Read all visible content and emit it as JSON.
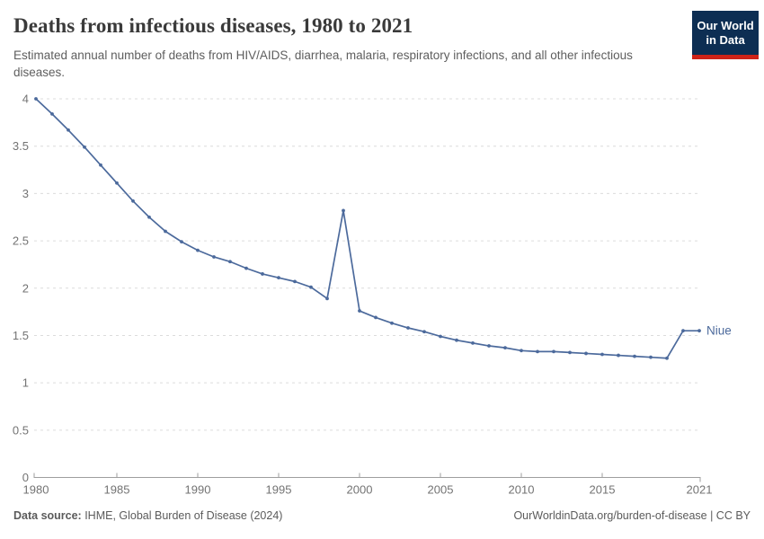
{
  "header": {
    "title": "Deaths from infectious diseases, 1980 to 2021",
    "subtitle": "Estimated annual number of deaths from HIV/AIDS, diarrhea, malaria, respiratory infections, and all other infectious diseases."
  },
  "logo": {
    "line1": "Our World",
    "line2": "in Data",
    "bg_color": "#0d2e53",
    "bar_color": "#cf2318"
  },
  "chart_data": {
    "type": "line",
    "title": "Deaths from infectious diseases, 1980 to 2021",
    "xlabel": "",
    "ylabel": "",
    "xlim": [
      1980,
      2021
    ],
    "ylim": [
      0,
      4
    ],
    "x_ticks": [
      1980,
      1985,
      1990,
      1995,
      2000,
      2005,
      2010,
      2015,
      2021
    ],
    "y_ticks": [
      0,
      0.5,
      1,
      1.5,
      2,
      2.5,
      3,
      3.5,
      4
    ],
    "grid": "horizontal-dashed",
    "legend_position": "end-of-line-label",
    "x": [
      1980,
      1981,
      1982,
      1983,
      1984,
      1985,
      1986,
      1987,
      1988,
      1989,
      1990,
      1991,
      1992,
      1993,
      1994,
      1995,
      1996,
      1997,
      1998,
      1999,
      2000,
      2001,
      2002,
      2003,
      2004,
      2005,
      2006,
      2007,
      2008,
      2009,
      2010,
      2011,
      2012,
      2013,
      2014,
      2015,
      2016,
      2017,
      2018,
      2019,
      2020,
      2021
    ],
    "series": [
      {
        "name": "Niue",
        "color": "#4C6A9C",
        "values": [
          4.0,
          3.84,
          3.67,
          3.49,
          3.3,
          3.11,
          2.92,
          2.75,
          2.6,
          2.49,
          2.4,
          2.33,
          2.28,
          2.21,
          2.15,
          2.11,
          2.07,
          2.01,
          1.89,
          2.82,
          1.76,
          1.69,
          1.63,
          1.58,
          1.54,
          1.49,
          1.45,
          1.42,
          1.39,
          1.37,
          1.34,
          1.33,
          1.33,
          1.32,
          1.31,
          1.3,
          1.29,
          1.28,
          1.27,
          1.26,
          1.55,
          1.55
        ]
      }
    ],
    "colors": {
      "grid": "#dcdcdc",
      "axis": "#9e9e9e",
      "tick_label": "#737373"
    }
  },
  "footer": {
    "source_label": "Data source:",
    "source_text": " IHME, Global Burden of Disease (2024)",
    "credit": "OurWorldinData.org/burden-of-disease | CC BY"
  }
}
